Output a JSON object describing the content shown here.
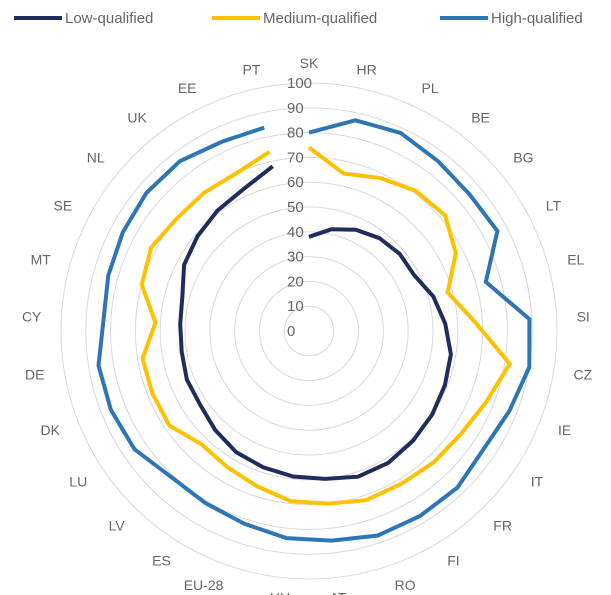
{
  "chart_data": {
    "type": "radar",
    "title": "",
    "categories": [
      "SK",
      "HR",
      "PL",
      "BE",
      "BG",
      "LT",
      "EL",
      "SI",
      "CZ",
      "IE",
      "IT",
      "FR",
      "FI",
      "RO",
      "AT",
      "HU",
      "EU-28",
      "ES",
      "LV",
      "LU",
      "DK",
      "DE",
      "CY",
      "MT",
      "SE",
      "NL",
      "UK",
      "EE",
      "PT"
    ],
    "rlim": [
      0,
      100
    ],
    "rticks": [
      "0",
      "10",
      "20",
      "30",
      "40",
      "50",
      "60",
      "70",
      "80",
      "90",
      "100"
    ],
    "grid": true,
    "legend_position": "top",
    "series": [
      {
        "name": "Low-qualified",
        "color": "#1f2d5c",
        "values": [
          38,
          42,
          45,
          47,
          48,
          48,
          52,
          55,
          58,
          59,
          60,
          61,
          62,
          62,
          60,
          59,
          58,
          57,
          55,
          53,
          53,
          52,
          52,
          53,
          57,
          59,
          61,
          63,
          68
        ]
      },
      {
        "name": "Medium-qualified",
        "color": "#ffc000",
        "values": [
          74,
          65,
          68,
          71,
          72,
          67,
          58,
          67,
          82,
          77,
          74,
          73,
          72,
          72,
          70,
          69,
          66,
          64,
          63,
          68,
          68,
          68,
          62,
          70,
          72,
          70,
          70,
          70,
          74
        ]
      },
      {
        "name": "High-qualified",
        "color": "#2e75b6",
        "values": [
          80,
          87,
          88,
          86,
          85,
          86,
          74,
          89,
          90,
          87,
          85,
          87,
          87,
          87,
          85,
          84,
          82,
          81,
          81,
          85,
          86,
          86,
          83,
          84,
          85,
          86,
          86,
          84,
          84
        ]
      }
    ]
  }
}
